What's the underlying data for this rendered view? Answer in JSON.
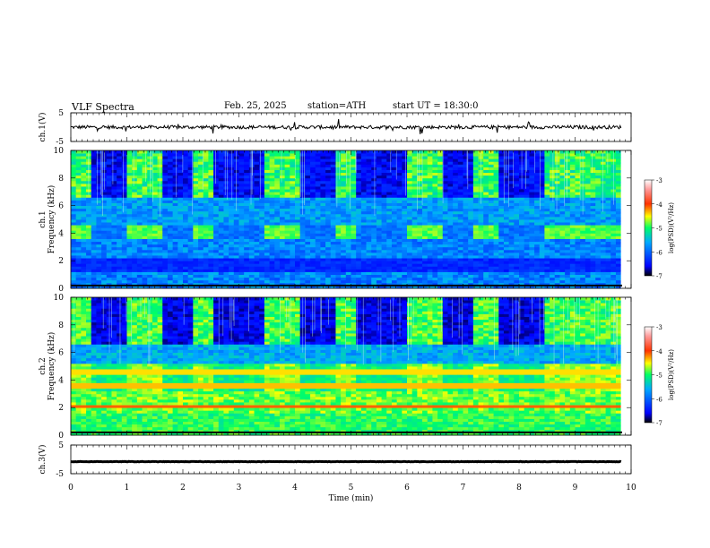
{
  "header": {
    "title": "VLF Spectra",
    "date": "Feb. 25, 2025",
    "station": "station=ATH",
    "start_ut": "start UT =  18:30:0"
  },
  "chart_data": [
    {
      "type": "line",
      "panel": "ch1-waveform",
      "ylabel": "ch.1(V)",
      "ylim": [
        -5,
        5
      ],
      "yticks": [
        "5",
        "-5"
      ],
      "xlim": [
        0,
        10
      ],
      "baseline": 0,
      "amplitude_typical": 0.6,
      "spikes_approx": 2.5,
      "color": "#000000"
    },
    {
      "type": "heatmap",
      "panel": "ch1-spectrogram",
      "ylabel": "ch.1 Frequency (kHz)",
      "ylim": [
        0,
        10
      ],
      "yticks": [
        "0",
        "2",
        "4",
        "6",
        "8",
        "10"
      ],
      "xlim": [
        0,
        10
      ],
      "colorbar": {
        "label": "log(PSD)(V²/Hz)",
        "range": [
          -7,
          -3
        ],
        "ticks": [
          "-3",
          "-4",
          "-5",
          "-6",
          "-7"
        ]
      },
      "quiet_intervals_min": [
        [
          0.38,
          1.0
        ],
        [
          1.6,
          2.2
        ],
        [
          2.58,
          3.5
        ],
        [
          4.1,
          4.7
        ],
        [
          5.1,
          6.0
        ],
        [
          6.6,
          7.2
        ],
        [
          7.6,
          8.5
        ]
      ],
      "band_4khz_kHz": [
        3.6,
        4.4
      ],
      "lower_band_kHz": [
        1.2,
        2.0
      ]
    },
    {
      "type": "heatmap",
      "panel": "ch2-spectrogram",
      "ylabel": "ch.2 Frequency (kHz)",
      "ylim": [
        0,
        10
      ],
      "yticks": [
        "0",
        "2",
        "4",
        "6",
        "8",
        "10"
      ],
      "xlim": [
        0,
        10
      ],
      "colorbar": {
        "label": "log(PSD)(V²/Hz)",
        "range": [
          -7,
          -3
        ],
        "ticks": [
          "-3",
          "-4",
          "-5",
          "-6",
          "-7"
        ]
      },
      "quiet_intervals_min": [
        [
          0.38,
          1.0
        ],
        [
          1.6,
          2.2
        ],
        [
          2.58,
          3.5
        ],
        [
          4.1,
          4.7
        ],
        [
          5.1,
          6.0
        ],
        [
          6.6,
          7.2
        ],
        [
          7.6,
          8.5
        ]
      ],
      "strong_lines_kHz": [
        2.1,
        3.6,
        4.6
      ]
    },
    {
      "type": "line",
      "panel": "ch3-waveform",
      "ylabel": "ch.3(V)",
      "ylim": [
        -5,
        5
      ],
      "yticks": [
        "5",
        "-5"
      ],
      "xlim": [
        0,
        10
      ],
      "baseline": -0.8,
      "color": "#000000",
      "xlabel": "Time (min)",
      "xticks": [
        "0",
        "1",
        "2",
        "3",
        "4",
        "5",
        "6",
        "7",
        "8",
        "9",
        "10"
      ]
    }
  ]
}
